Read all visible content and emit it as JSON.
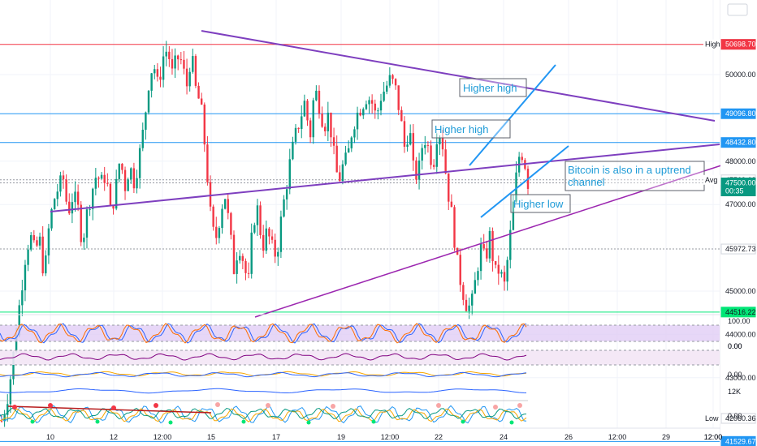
{
  "currency": "EUR",
  "chart_data": {
    "type": "candlestick",
    "x_tick_labels": [
      "10",
      "12",
      "12:00",
      "15",
      "17",
      "19",
      "12:00",
      "22",
      "24",
      "26",
      "12:00",
      "29",
      "12:00"
    ],
    "y_tick_labels": [
      "50000.00",
      "48000.00",
      "47000.00",
      "45000.00",
      "44000.00",
      "43000.00"
    ],
    "price_range": [
      41300,
      51000
    ],
    "price_markers": [
      {
        "kind": "high",
        "prefix": "High",
        "label": "50700.00",
        "value": 50700.0,
        "color": "#ffffff",
        "text_color": "#131722"
      },
      {
        "kind": "resistance",
        "label": "50698.70",
        "value": 50698.7,
        "color": "#f23645",
        "text_color": "#ffffff"
      },
      {
        "kind": "level",
        "label": "49096.80",
        "value": 49096.8,
        "color": "#2196f3",
        "text_color": "#ffffff"
      },
      {
        "kind": "level",
        "label": "48432.80",
        "value": 48432.8,
        "color": "#2196f3",
        "text_color": "#ffffff"
      },
      {
        "kind": "avg",
        "prefix": "Avg",
        "label": "47569.63",
        "value": 47569.63,
        "color": "#ffffff",
        "text_color": "#131722"
      },
      {
        "kind": "last",
        "label": "47500.00",
        "sub": "00:35",
        "value": 47500.0,
        "color": "#089981",
        "text_color": "#ffffff"
      },
      {
        "kind": "level",
        "label": "45972.73",
        "value": 45972.73,
        "color": "#ffffff",
        "text_color": "#131722"
      },
      {
        "kind": "support",
        "label": "44516.22",
        "value": 44516.22,
        "color": "#00e676",
        "text_color": "#131722"
      },
      {
        "kind": "low",
        "prefix": "Low",
        "label": "42060.36",
        "value": 42060.36,
        "color": "#ffffff",
        "text_color": "#131722"
      },
      {
        "kind": "level",
        "label": "41529.67",
        "value": 41529.67,
        "color": "#2196f3",
        "text_color": "#ffffff"
      }
    ],
    "price_path": [
      42000,
      42400,
      43100,
      44000,
      44900,
      45800,
      46300,
      45900,
      46200,
      45300,
      46500,
      47100,
      47400,
      47600,
      46800,
      47200,
      47000,
      46100,
      46800,
      47300,
      47700,
      47500,
      47700,
      46800,
      47300,
      48100,
      47400,
      47900,
      47500,
      48100,
      48800,
      49800,
      50300,
      49700,
      50400,
      50600,
      50000,
      50400,
      50300,
      49700,
      50500,
      49600,
      49300,
      48200,
      46800,
      46100,
      46700,
      47300,
      46500,
      45500,
      46100,
      45700,
      45100,
      46600,
      46900,
      46000,
      46400,
      46000,
      45800,
      46700,
      47400,
      48100,
      48600,
      49000,
      49400,
      48500,
      49700,
      49300,
      48800,
      49100,
      48200,
      47500,
      47900,
      48100,
      48800,
      49100,
      49300,
      49500,
      49400,
      49000,
      49500,
      49700,
      49900,
      49700,
      49100,
      48300,
      48800,
      47600,
      47800,
      48600,
      48300,
      47900,
      48800,
      48400,
      47400,
      46700,
      45700,
      45100,
      44700,
      44600,
      45300,
      46000,
      45700,
      46300,
      45400,
      45500,
      45100,
      46000,
      47100,
      48100,
      48200,
      47500
    ],
    "candle_count": 180,
    "trend_lines": [
      {
        "name": "descending-resistance",
        "color": "#7e3fbf",
        "from_price": 50950,
        "to_price": 47450
      },
      {
        "name": "ascending-support",
        "color": "#7e3fbf",
        "from_price": 44760,
        "to_price": 47130
      },
      {
        "name": "long-uptrend",
        "color": "#9c27b0",
        "from_price": 41270,
        "to_price": 46280
      },
      {
        "name": "channel-upper",
        "color": "#2196f3"
      },
      {
        "name": "channel-lower",
        "color": "#2196f3"
      }
    ],
    "annotations": [
      {
        "id": "higher-high-top",
        "text": "Higher high"
      },
      {
        "id": "higher-high-mid",
        "text": "Higher high"
      },
      {
        "id": "higher-low",
        "text": "Higher low"
      },
      {
        "id": "uptrend-note",
        "text": "Bitcoin is also in a uptrend channel"
      }
    ],
    "indicators": [
      {
        "name": "oscillator-1",
        "tick_labels": [
          "100.00",
          "0.00"
        ],
        "color": "#9c27b0",
        "band": true
      },
      {
        "name": "oscillator-2",
        "tick_labels": [
          "0.00"
        ],
        "color": "#800080",
        "band": true
      },
      {
        "name": "oscillator-3",
        "tick_labels": [
          "0.00"
        ],
        "color": "#f7a600"
      },
      {
        "name": "volume-line",
        "tick_labels": [
          "12K"
        ],
        "color": "#2962ff"
      },
      {
        "name": "wave-indicator",
        "tick_labels": [
          "0.00"
        ],
        "color": "#2196f3"
      }
    ]
  }
}
